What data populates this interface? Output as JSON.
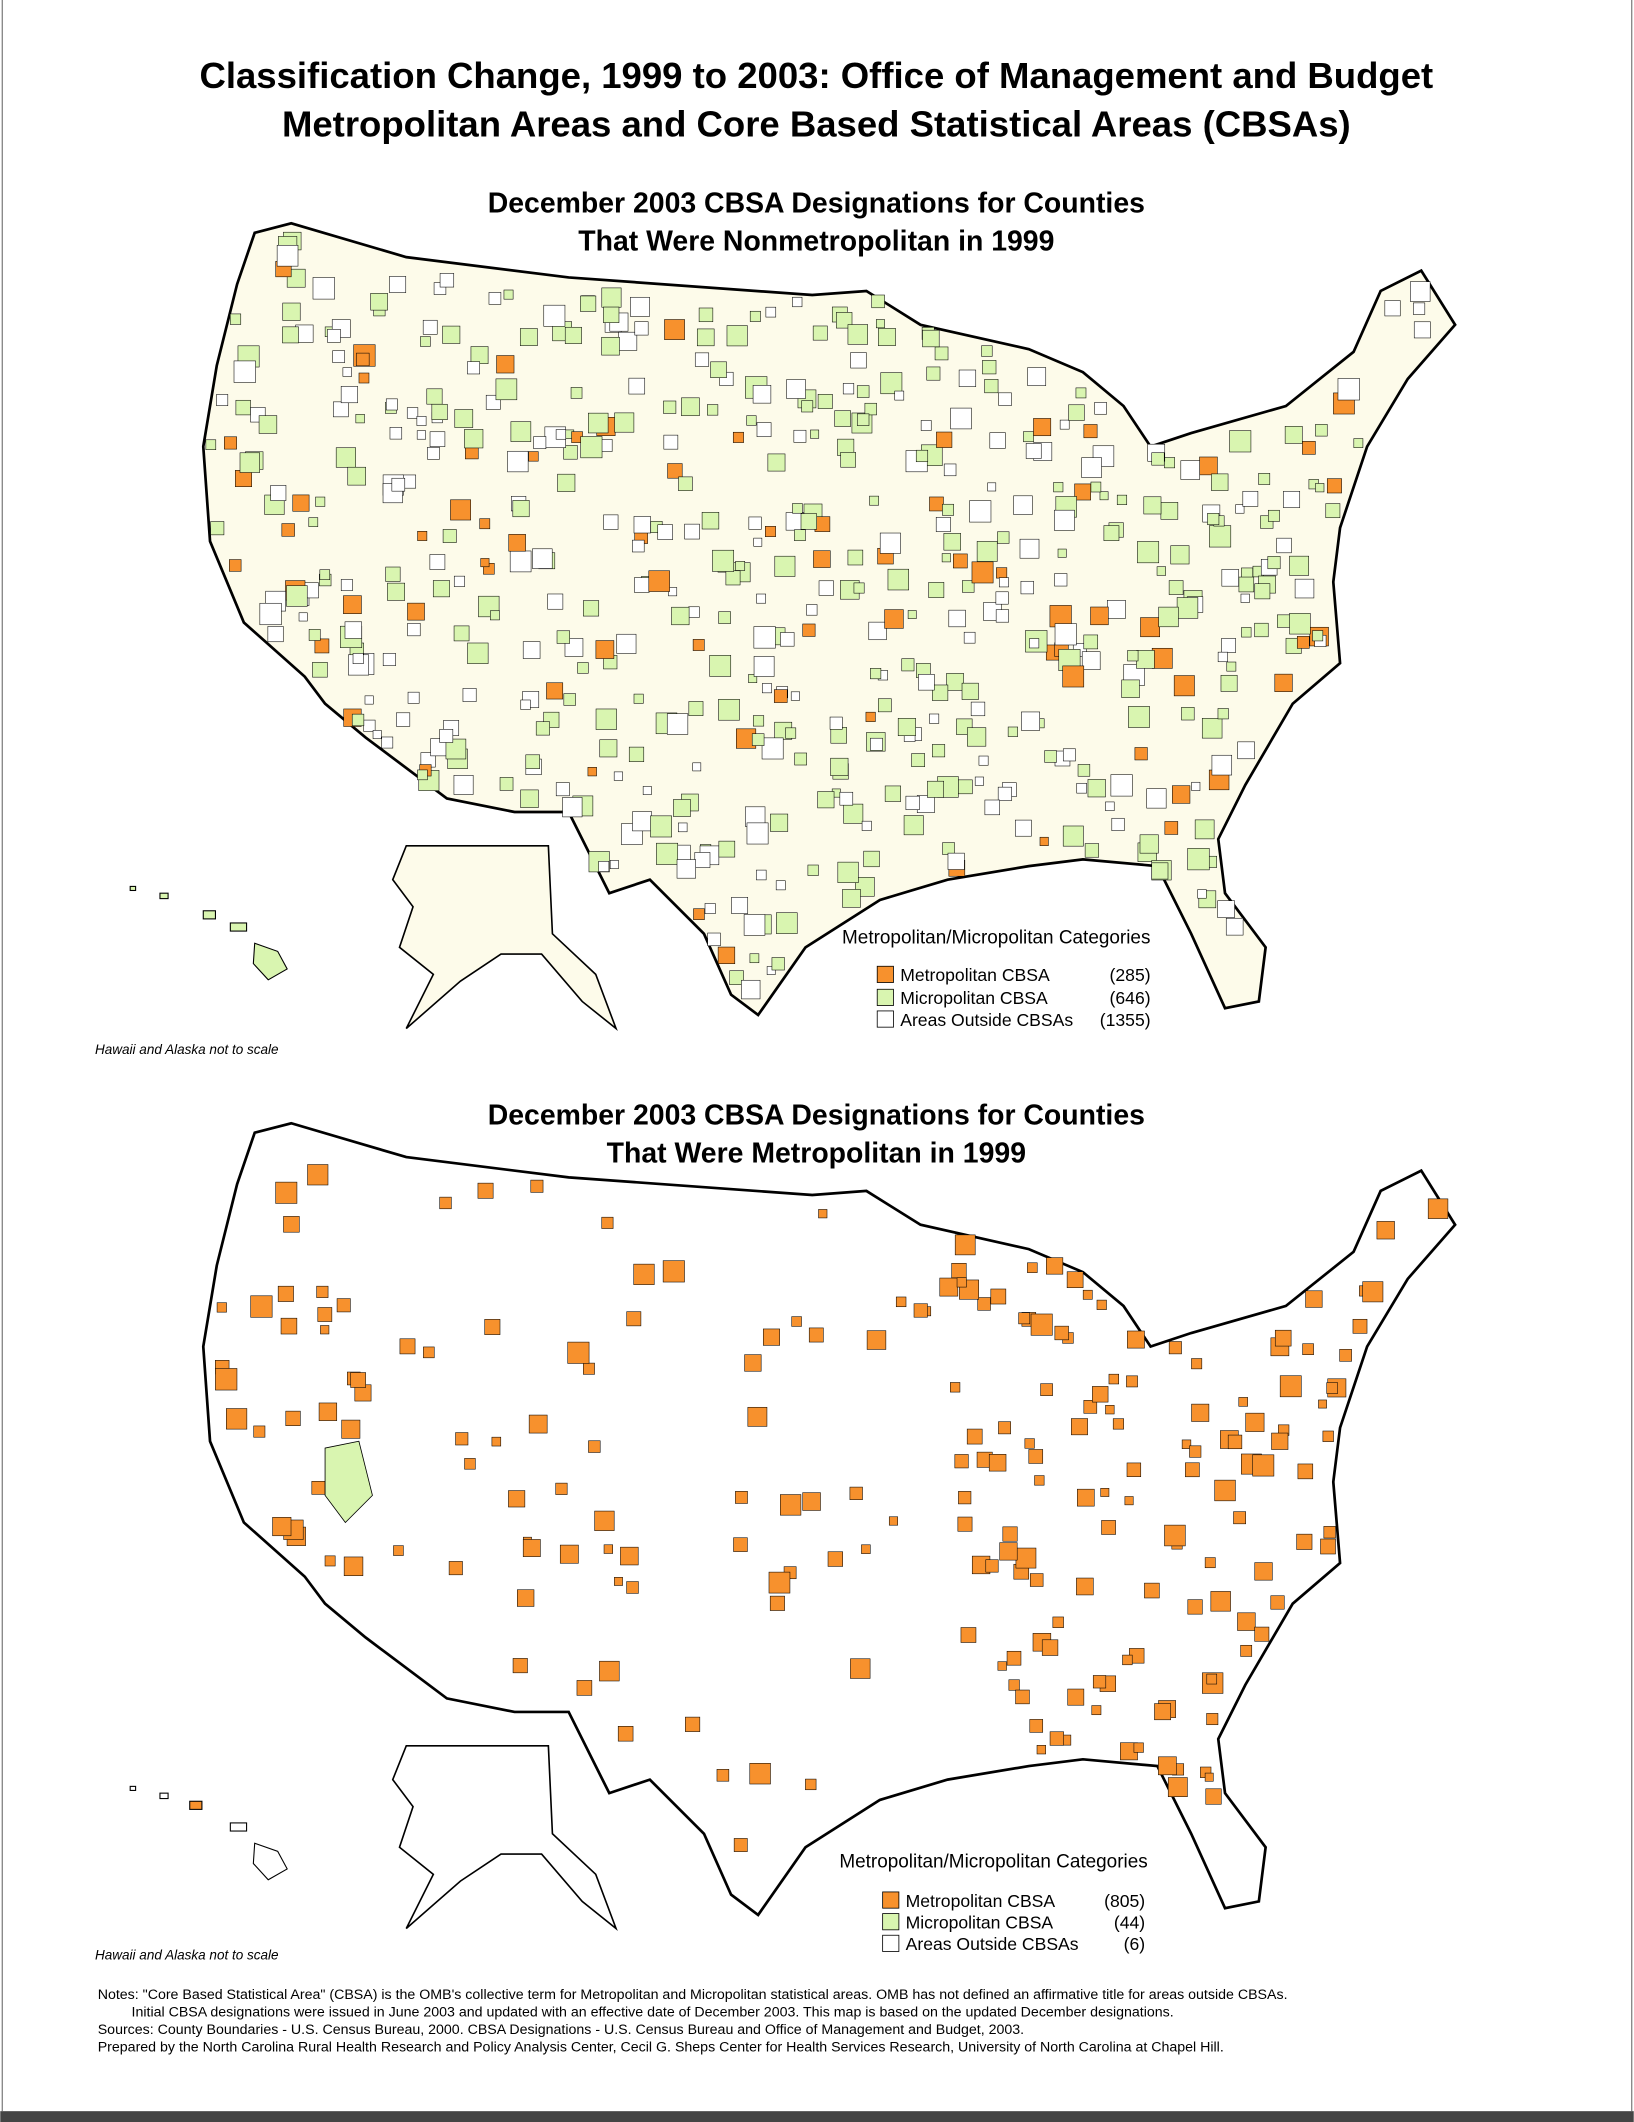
{
  "header": {
    "title_lines": [
      "Classification Change, 1999 to 2003: Office of Management and Budget",
      "Metropolitan Areas and Core Based Statistical Areas (CBSAs)"
    ]
  },
  "maps": [
    {
      "title_lines": [
        "December 2003 CBSA Designations for Counties",
        "That Were Nonmetropolitan in 1999"
      ],
      "legend": {
        "heading": "Metropolitan/Micropolitan Categories",
        "items": [
          {
            "label": "Metropolitan CBSA",
            "count": "(285)"
          },
          {
            "label": "Micropolitan CBSA",
            "count": "(646)"
          },
          {
            "label": "Areas Outside CBSAs",
            "count": "(1355)"
          }
        ]
      },
      "scale_note": "Hawaii and Alaska not to scale"
    },
    {
      "title_lines": [
        "December 2003 CBSA Designations for Counties",
        "That Were Metropolitan in 1999"
      ],
      "legend": {
        "heading": "Metropolitan/Micropolitan Categories",
        "items": [
          {
            "label": "Metropolitan CBSA",
            "count": "(805)"
          },
          {
            "label": "Micropolitan CBSA",
            "count": "(44)"
          },
          {
            "label": "Areas Outside CBSAs",
            "count": "(6)"
          }
        ]
      },
      "scale_note": "Hawaii and Alaska not to scale"
    }
  ],
  "notes": [
    "Notes: \"Core Based Statistical Area\" (CBSA) is the OMB's collective term for Metropolitan and Micropolitan statistical areas. OMB has not defined an affirmative title for areas outside CBSAs.",
    "Initial CBSA designations were issued in June 2003 and updated with an effective date of December 2003. This map is based on the updated December designations.",
    "Sources: County Boundaries - U.S. Census Bureau, 2000. CBSA Designations - U.S. Census Bureau and Office of Management and Budget, 2003.",
    "Prepared by the North Carolina Rural Health Research and Policy Analysis Center, Cecil G. Sheps Center for Health Services Research, University of North Carolina at Chapel Hill."
  ]
}
